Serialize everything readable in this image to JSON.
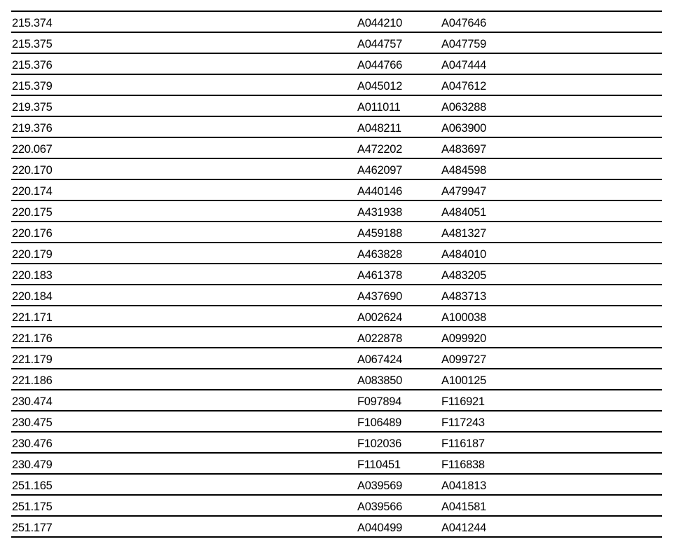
{
  "table": {
    "rows": [
      [
        "215.374",
        "A044210",
        "A047646"
      ],
      [
        "215.375",
        "A044757",
        "A047759"
      ],
      [
        "215.376",
        "A044766",
        "A047444"
      ],
      [
        "215.379",
        "A045012",
        "A047612"
      ],
      [
        "219.375",
        "A011011",
        "A063288"
      ],
      [
        "219.376",
        "A048211",
        "A063900"
      ],
      [
        "220.067",
        "A472202",
        "A483697"
      ],
      [
        "220.170",
        "A462097",
        "A484598"
      ],
      [
        "220.174",
        "A440146",
        "A479947"
      ],
      [
        "220.175",
        "A431938",
        "A484051"
      ],
      [
        "220.176",
        "A459188",
        "A481327"
      ],
      [
        "220.179",
        "A463828",
        "A484010"
      ],
      [
        "220.183",
        "A461378",
        "A483205"
      ],
      [
        "220.184",
        "A437690",
        "A483713"
      ],
      [
        "221.171",
        "A002624",
        "A100038"
      ],
      [
        "221.176",
        "A022878",
        "A099920"
      ],
      [
        "221.179",
        "A067424",
        "A099727"
      ],
      [
        "221.186",
        "A083850",
        "A100125"
      ],
      [
        "230.474",
        "F097894",
        "F116921"
      ],
      [
        "230.475",
        "F106489",
        "F117243"
      ],
      [
        "230.476",
        "F102036",
        "F116187"
      ],
      [
        "230.479",
        "F110451",
        "F116838"
      ],
      [
        "251.165",
        "A039569",
        "A041813"
      ],
      [
        "251.175",
        "A039566",
        "A041581"
      ],
      [
        "251.177",
        "A040499",
        "A041244"
      ]
    ]
  }
}
